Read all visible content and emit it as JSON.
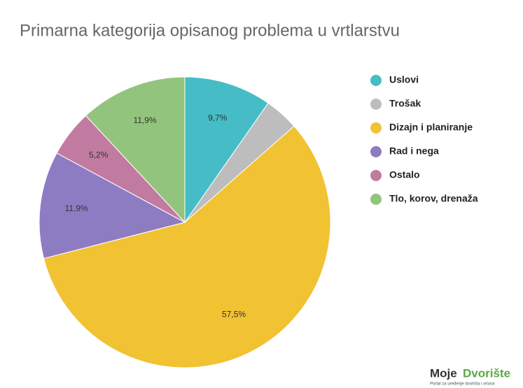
{
  "chart_data": {
    "type": "pie",
    "title": "Primarna kategorija opisanog problema u vrtlarstvu",
    "categories": [
      "Uslovi",
      "Trošak",
      "Dizajn i planiranje",
      "Rad i nega",
      "Ostalo",
      "Tlo, korov, drenaža"
    ],
    "values": [
      9.7,
      3.8,
      57.5,
      11.9,
      5.2,
      11.9
    ],
    "value_labels": [
      "9,7%",
      null,
      "57,5%",
      "11,9%",
      "5,2%",
      "11,9%"
    ],
    "colors": [
      "#46bdc6",
      "#bdbdbd",
      "#f1c232",
      "#8e7cc3",
      "#c27ba0",
      "#93c47d"
    ],
    "legend": "right"
  },
  "logo": {
    "first": "Moje",
    "second": "Dvorište",
    "tagline": "Portal za uređenje dvorišta i vrtova"
  }
}
